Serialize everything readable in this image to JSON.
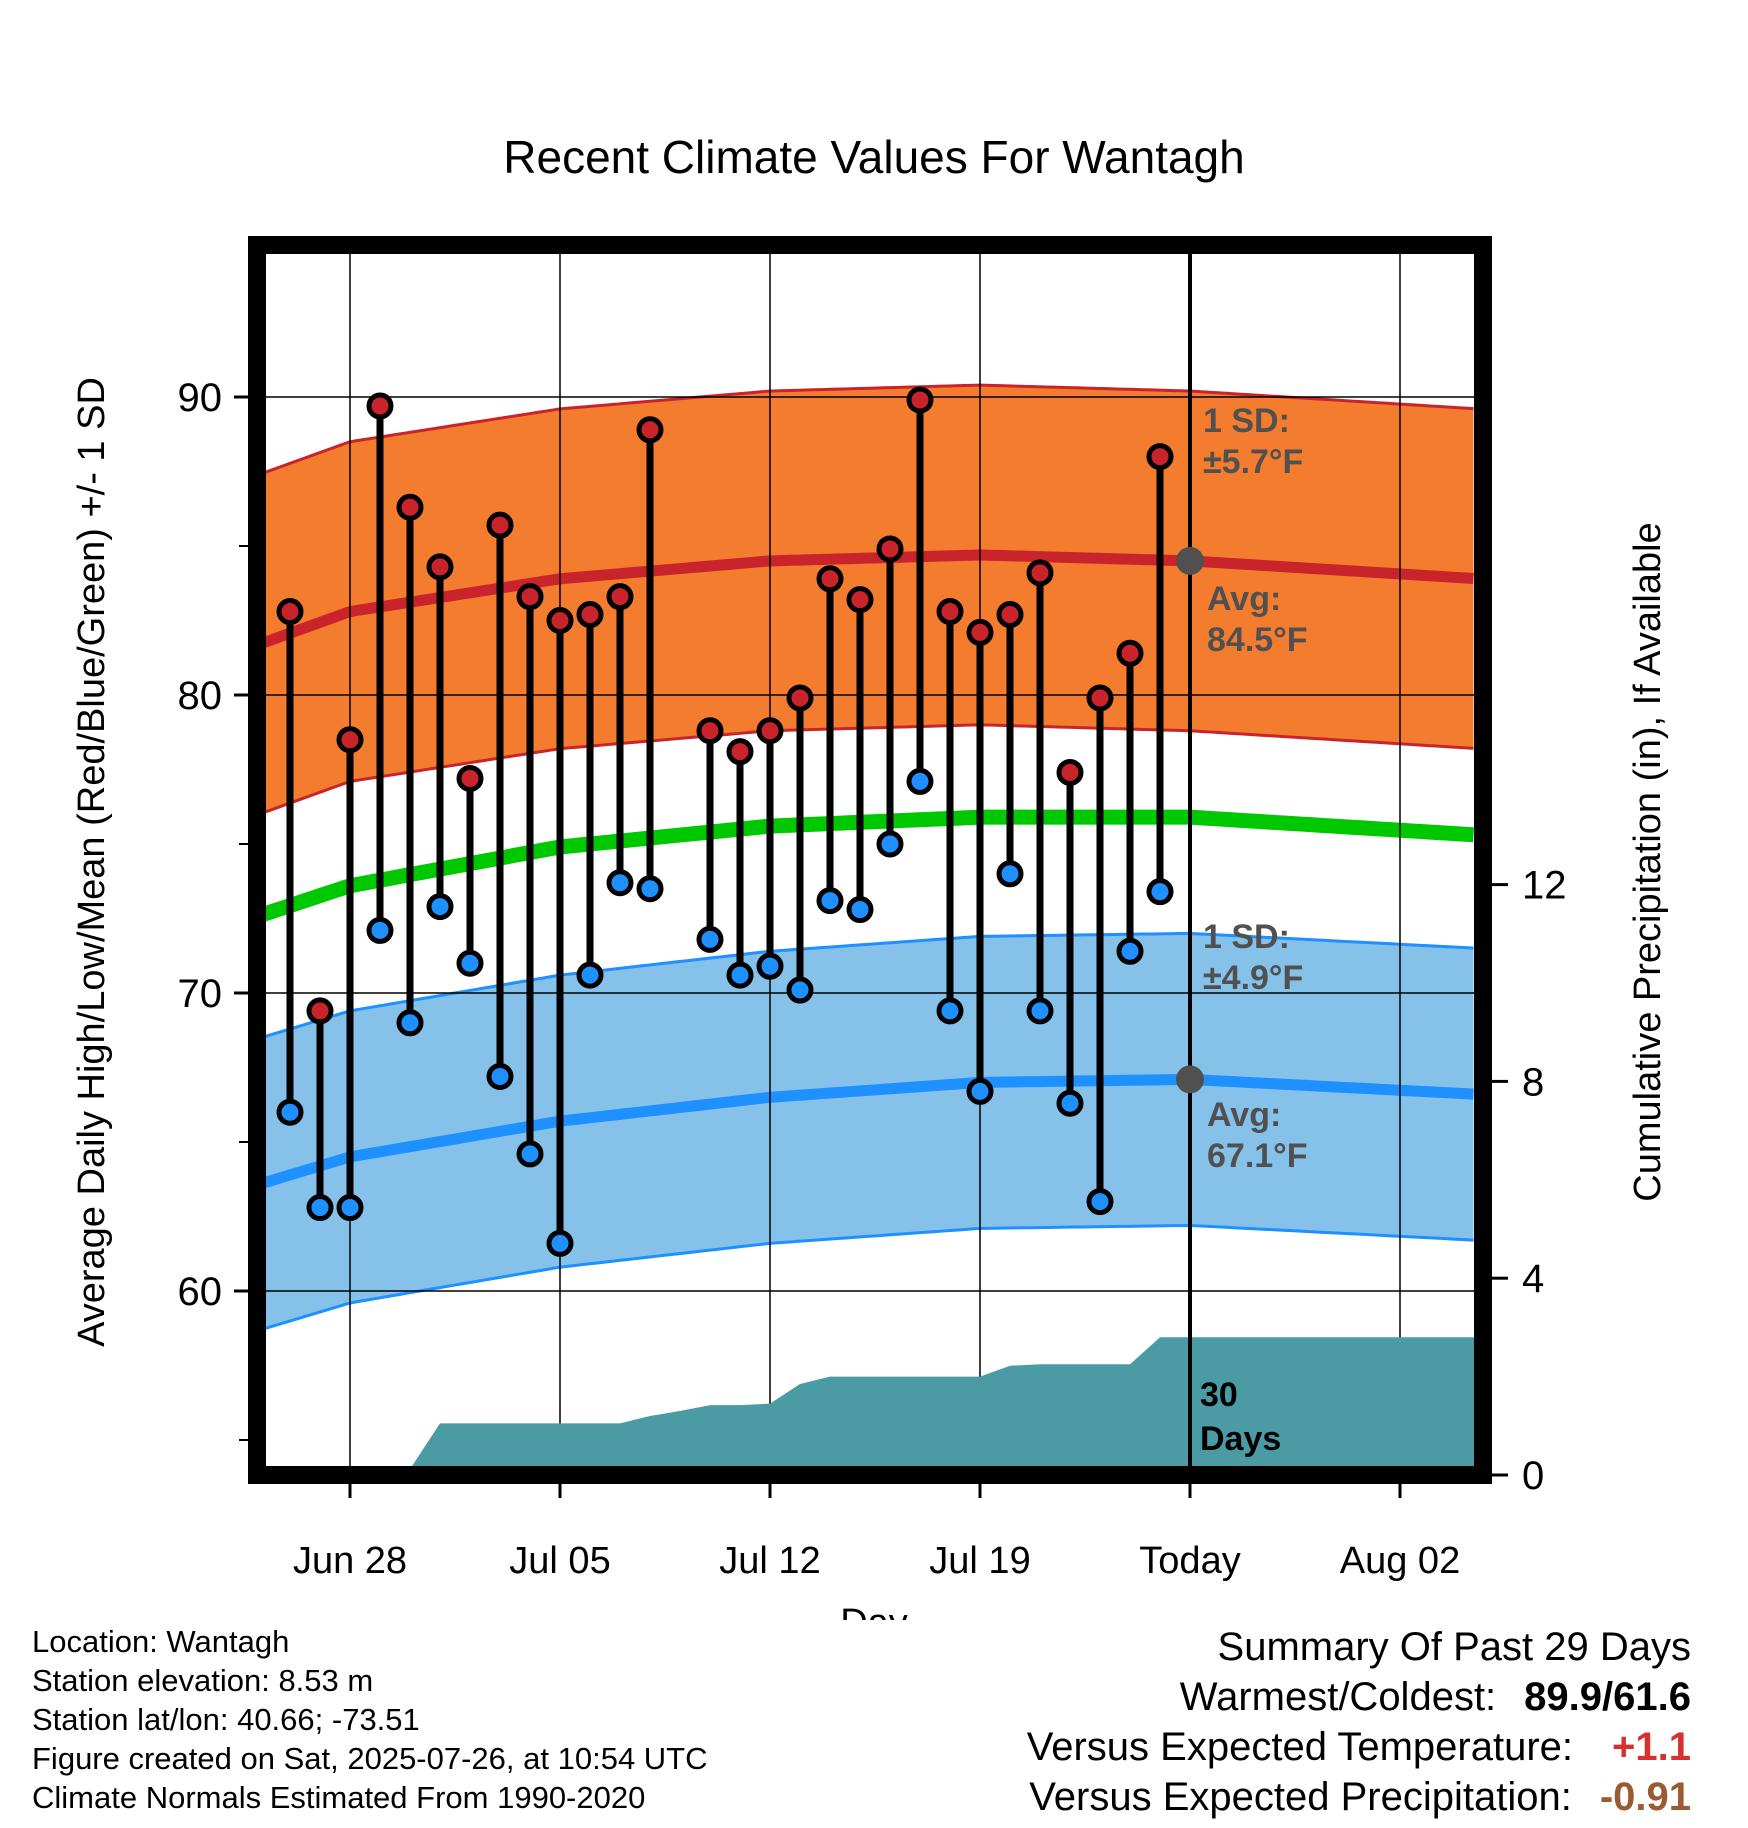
{
  "chart_data": {
    "type": "line",
    "title": "Recent Climate Values For Wantagh",
    "xlabel": "Day",
    "ylabel": "Average Daily High/Low/Mean (Red/Blue/Green) +/- 1 SD",
    "y2label": "Cumulative Precipitation (in), If Available",
    "ylim": [
      53.5,
      95
    ],
    "y2lim": [
      0,
      12
    ],
    "yticks": [
      "60",
      "70",
      "80",
      "90"
    ],
    "y2ticks": [
      "0",
      "4",
      "8",
      "12"
    ],
    "xticks": [
      {
        "day": 0,
        "label": "Jun 28"
      },
      {
        "day": 7,
        "label": "Jul 05"
      },
      {
        "day": 14,
        "label": "Jul 12"
      },
      {
        "day": 21,
        "label": "Jul 19"
      },
      {
        "day": 28,
        "label": "Today"
      },
      {
        "day": 35,
        "label": "Aug 02"
      }
    ],
    "day_range": [
      -3.3,
      37.6
    ],
    "normals": {
      "days": [
        -3.3,
        0,
        7,
        14,
        21,
        28,
        37.6
      ],
      "high_mean": [
        81.6,
        82.8,
        83.9,
        84.5,
        84.7,
        84.5,
        83.9
      ],
      "high_sd": 5.7,
      "low_mean": [
        63.5,
        64.5,
        65.7,
        66.5,
        67.0,
        67.1,
        66.6
      ],
      "low_sd": 4.9,
      "mean": [
        72.5,
        73.6,
        74.9,
        75.6,
        75.9,
        75.9,
        75.3
      ]
    },
    "series": [
      {
        "name": "Daily High",
        "color": "#c9242b",
        "x": [
          -2,
          -1,
          0,
          1,
          2,
          3,
          4,
          5,
          6,
          7,
          8,
          9,
          10,
          12,
          13,
          14,
          15,
          16,
          17,
          18,
          19,
          20,
          21,
          22,
          23,
          24,
          25,
          26,
          27
        ],
        "values": [
          82.8,
          69.4,
          78.5,
          89.7,
          86.3,
          84.3,
          77.2,
          85.7,
          83.3,
          82.5,
          82.7,
          83.3,
          88.9,
          78.8,
          78.1,
          78.8,
          79.9,
          83.9,
          83.2,
          84.9,
          89.9,
          82.8,
          82.1,
          82.7,
          84.1,
          77.4,
          79.9,
          81.4,
          88.0
        ]
      },
      {
        "name": "Daily Low",
        "color": "#1e90ff",
        "x": [
          -2,
          -1,
          0,
          1,
          2,
          3,
          4,
          5,
          6,
          7,
          8,
          9,
          10,
          12,
          13,
          14,
          15,
          16,
          17,
          18,
          19,
          20,
          21,
          22,
          23,
          24,
          25,
          26,
          27
        ],
        "values": [
          66.0,
          62.8,
          62.8,
          72.1,
          69.0,
          72.9,
          71.0,
          67.2,
          64.6,
          61.6,
          70.6,
          73.7,
          73.5,
          71.8,
          70.6,
          70.9,
          70.1,
          73.1,
          72.8,
          75.0,
          77.1,
          69.4,
          66.7,
          74.0,
          69.4,
          66.3,
          63.0,
          71.4,
          73.4
        ]
      },
      {
        "name": "Cumulative Precipitation",
        "color": "#4a9ba3",
        "x": [
          -3.3,
          1,
          2,
          3,
          9,
          10,
          11,
          12,
          13,
          14,
          15,
          16,
          17,
          18,
          19,
          20,
          21,
          22,
          23,
          24,
          25,
          26,
          27,
          28,
          37.6
        ],
        "values": [
          0,
          0,
          0.12,
          1.05,
          1.05,
          1.2,
          1.3,
          1.42,
          1.42,
          1.45,
          1.85,
          2.0,
          2.0,
          2.0,
          2.0,
          2.0,
          2.0,
          2.22,
          2.25,
          2.25,
          2.25,
          2.25,
          2.8,
          2.8,
          2.8
        ]
      }
    ],
    "annotations": {
      "high_sd_label": [
        "1 SD:",
        "±5.7°F"
      ],
      "high_avg_label": [
        "Avg:",
        "84.5°F"
      ],
      "low_sd_label": [
        "1 SD:",
        "±4.9°F"
      ],
      "low_avg_label": [
        "Avg:",
        "67.1°F"
      ],
      "period_label": [
        "30",
        "Days"
      ]
    },
    "colors": {
      "high_band": "#f47c2f",
      "high_line": "#c9242b",
      "low_band": "#85c1e8",
      "low_line": "#1e90ff",
      "mean_line": "#00c800",
      "precip": "#4a9ba3",
      "annotation": "#505050"
    }
  },
  "footer": {
    "location": "Location: Wantagh",
    "elevation": "Station elevation: 8.53 m",
    "latlon": "Station lat/lon: 40.66; -73.51",
    "created": "Figure created on Sat, 2025-07-26, at 10:54 UTC",
    "normals": "Climate Normals Estimated From 1990-2020"
  },
  "summary": {
    "title": "Summary Of Past 29 Days",
    "warm_cold_label": "Warmest/Coldest:",
    "warm_cold_value": "89.9/61.6",
    "temp_label": "Versus Expected Temperature:",
    "temp_value": "+1.1",
    "precip_label": "Versus Expected Precipitation:",
    "precip_value": "-0.91"
  }
}
